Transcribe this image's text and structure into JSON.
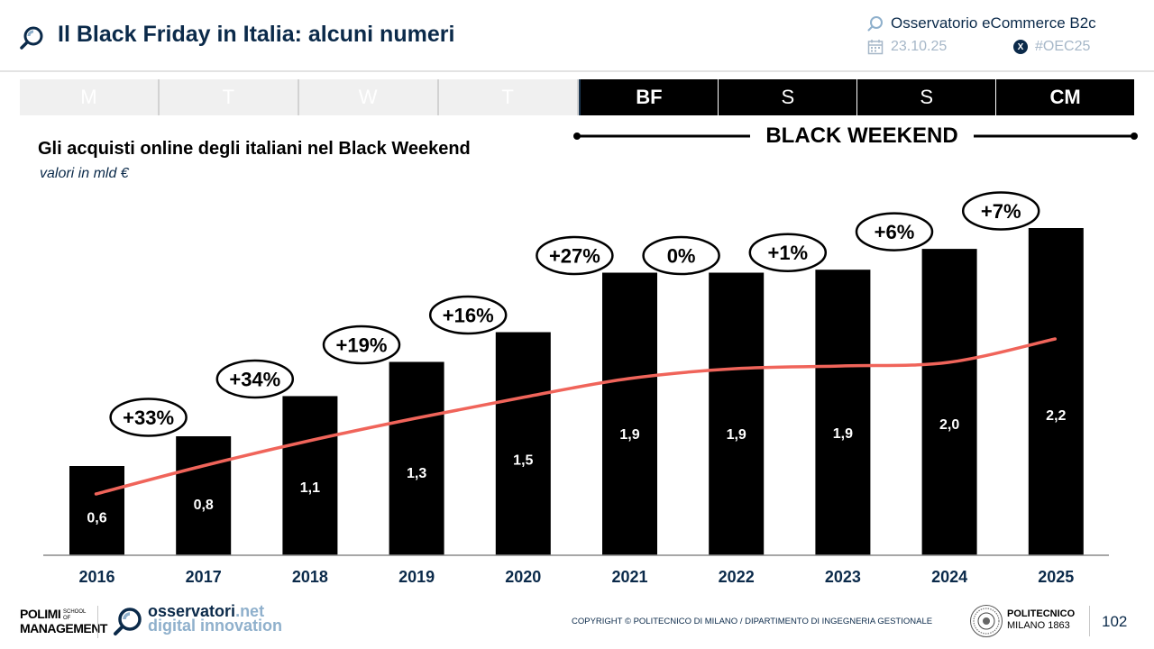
{
  "header": {
    "title": "Il Black Friday in Italia: alcuni numeri",
    "observatory": "Osservatorio eCommerce B2c",
    "date": "23.10.25",
    "hashtag": "#OEC25"
  },
  "days": [
    {
      "label": "M",
      "style": "light"
    },
    {
      "label": "T",
      "style": "light"
    },
    {
      "label": "W",
      "style": "light"
    },
    {
      "label": "T",
      "style": "light"
    },
    {
      "label": "BF",
      "style": "dark-bold"
    },
    {
      "label": "S",
      "style": "dark"
    },
    {
      "label": "S",
      "style": "dark"
    },
    {
      "label": "CM",
      "style": "dark-bold"
    }
  ],
  "weekend_label": "BLACK WEEKEND",
  "chart_data": {
    "type": "bar",
    "title": "Gli acquisti online degli italiani nel Black Weekend",
    "subtitle": "valori in mld €",
    "categories": [
      "2016",
      "2017",
      "2018",
      "2019",
      "2020",
      "2021",
      "2022",
      "2023",
      "2024",
      "2025"
    ],
    "values": [
      0.6,
      0.8,
      1.1,
      1.3,
      1.5,
      1.9,
      1.9,
      1.9,
      2.0,
      2.2
    ],
    "value_labels": [
      "0,6",
      "0,8",
      "1,1",
      "1,3",
      "1,5",
      "1,9",
      "1,9",
      "1,9",
      "2,0",
      "2,2"
    ],
    "bar_heights_value": [
      0.6,
      0.8,
      1.07,
      1.3,
      1.5,
      1.9,
      1.9,
      1.92,
      2.06,
      2.2
    ],
    "growth_labels": [
      "+33%",
      "+34%",
      "+19%",
      "+16%",
      "+27%",
      "0%",
      "+1%",
      "+6%",
      "+7%"
    ],
    "trend_line": true,
    "ylim": [
      0,
      2.4
    ],
    "bar_color": "#000000",
    "trend_color": "#f0645a"
  },
  "footer": {
    "school_top": "POLIMI",
    "school_bottom": "MANAGEMENT",
    "school_small": "SCHOOL OF",
    "osservatori_main": "osservatori",
    "osservatori_tld": ".net",
    "osservatori_sub": "digital innovation",
    "copyright": "COPYRIGHT © POLITECNICO DI MILANO / DIPARTIMENTO DI INGEGNERIA GESTIONALE",
    "polimi_name": "POLITECNICO",
    "polimi_city": "MILANO 1863",
    "page_number": "102"
  },
  "colors": {
    "navy": "#0b2a4a",
    "light_blue": "#8fb0cc",
    "trend": "#f0645a"
  }
}
